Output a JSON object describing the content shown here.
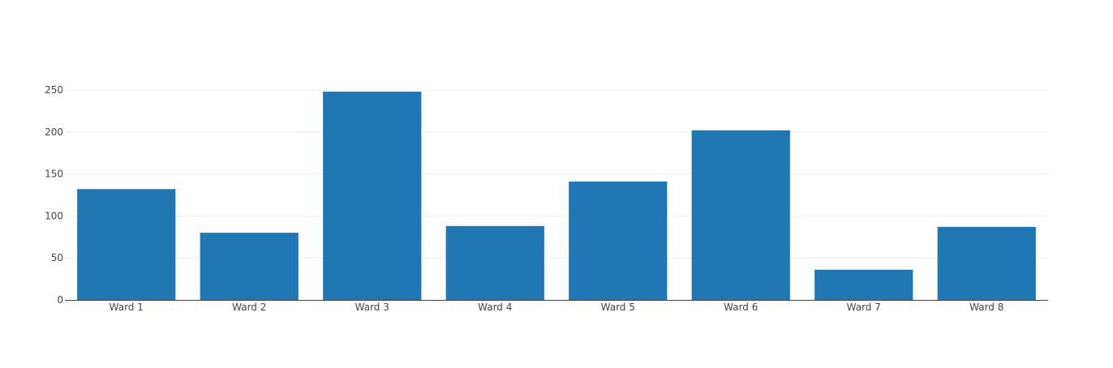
{
  "chart_data": {
    "type": "bar",
    "categories": [
      "Ward 1",
      "Ward 2",
      "Ward 3",
      "Ward 4",
      "Ward 5",
      "Ward 6",
      "Ward 7",
      "Ward 8"
    ],
    "values": [
      132,
      80,
      248,
      88,
      141,
      202,
      36,
      87
    ],
    "title": "",
    "xlabel": "",
    "ylabel": "",
    "ylim": [
      0,
      260
    ],
    "yticks": [
      0,
      50,
      100,
      150,
      200,
      250
    ],
    "grid": true,
    "legend": "none",
    "bar_color": "#1f77b4"
  }
}
